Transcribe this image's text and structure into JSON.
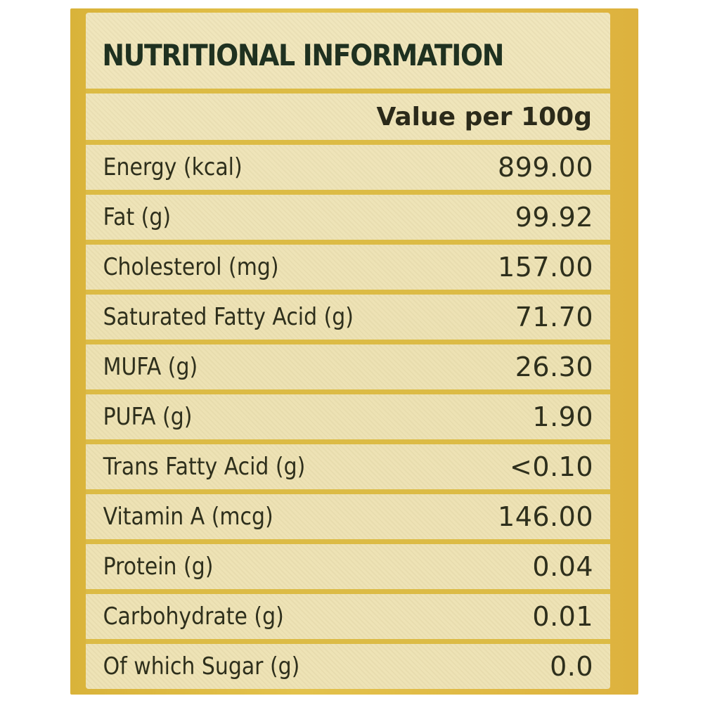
{
  "title": "NUTRITIONAL INFORMATION",
  "column_header": "Value per 100g",
  "rows": [
    {
      "name": "Energy (kcal)",
      "value": "899.00"
    },
    {
      "name": "Fat (g)",
      "value": "99.92"
    },
    {
      "name": "Cholesterol (mg)",
      "value": "157.00"
    },
    {
      "name": "Saturated Fatty Acid (g)",
      "value": "71.70"
    },
    {
      "name": "MUFA (g)",
      "value": "26.30"
    },
    {
      "name": "PUFA (g)",
      "value": "1.90"
    },
    {
      "name": "Trans Fatty Acid (g)",
      "value": "<0.10"
    },
    {
      "name": "Vitamin A (mcg)",
      "value": "146.00"
    },
    {
      "name": "Protein (g)",
      "value": "0.04"
    },
    {
      "name": "Carbohydrate (g)",
      "value": "0.01"
    },
    {
      "name": "Of which Sugar (g)",
      "value": "0.0"
    }
  ],
  "colors": {
    "frame": "#dcb440",
    "panel": "#efe5b9",
    "text": "#2e2f1c",
    "title": "#1f3120"
  }
}
